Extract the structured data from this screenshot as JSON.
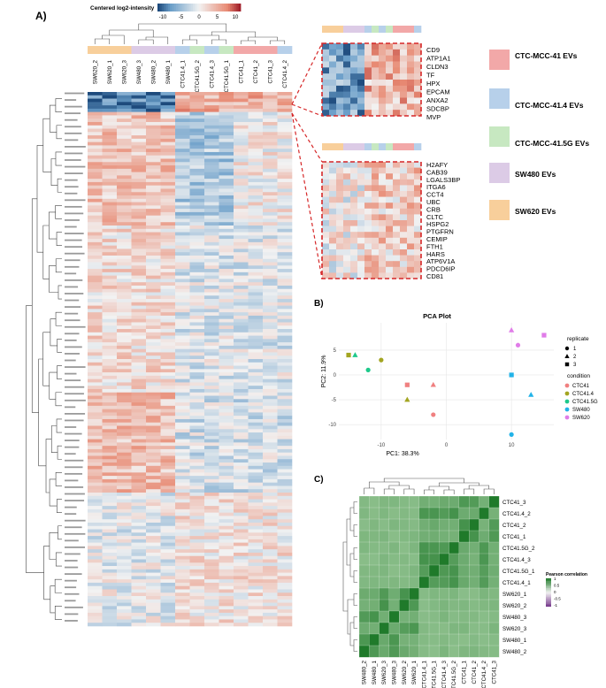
{
  "panel_labels": {
    "a": "A)",
    "b": "B)",
    "c": "C)"
  },
  "colors": {
    "CTC41": "#f2a8a8",
    "CTC41.4": "#b7d0ea",
    "CTC41.5G": "#c7e8c1",
    "SW480": "#dccbe6",
    "SW620": "#f8cf9b"
  },
  "chart_data": [
    {
      "type": "heatmap",
      "title": "Centered log2-intensity",
      "legend_ticks": [
        "-10",
        "-5",
        "0",
        "5",
        "10"
      ],
      "columns": [
        "SW620_2",
        "SW620_1",
        "SW620_3",
        "SW480_3",
        "SW480_2",
        "SW480_1",
        "CTC41.4_1",
        "CTC41.5G_2",
        "CTC41.4_3",
        "CTC41.5G_1",
        "CTC41_1",
        "CTC41_2",
        "CTC41_3",
        "CTC41.4_2"
      ],
      "column_groups": [
        "SW620",
        "SW620",
        "SW620",
        "SW480",
        "SW480",
        "SW480",
        "CTC41.4",
        "CTC41.5G",
        "CTC41.4",
        "CTC41.5G",
        "CTC41",
        "CTC41",
        "CTC41",
        "CTC41.4"
      ],
      "legend": [
        {
          "key": "CTC41",
          "label": "CTC-MCC-41 EVs"
        },
        {
          "key": "CTC41.4",
          "label": "CTC-MCC-41.4 EVs"
        },
        {
          "key": "CTC41.5G",
          "label": "CTC-MCC-41.5G EVs"
        },
        {
          "key": "SW480",
          "label": "SW480 EVs"
        },
        {
          "key": "SW620",
          "label": "SW620 EVs"
        }
      ],
      "zoom_top_genes": [
        "CD9",
        "ATP1A1",
        "CLDN3",
        "TF",
        "HPX",
        "EPCAM",
        "ANXA2",
        "SDCBP",
        "MVP"
      ],
      "zoom_bottom_genes": [
        "H2AFY",
        "CAB39",
        "LGALS3BP",
        "ITGA6",
        "CCT4",
        "UBC",
        "CRB",
        "CLTC",
        "HSPG2",
        "PTGFRN",
        "CEMIP",
        "FTH1",
        "HARS",
        "ATP6V1A",
        "PDCD6IP",
        "CD81"
      ]
    },
    {
      "type": "scatter",
      "title": "PCA Plot",
      "xlabel": "PC1: 38.3%",
      "ylabel": "PC2: 11.9%",
      "xlim": [
        -16.5,
        16.5
      ],
      "ylim": [
        -13,
        10.5
      ],
      "xticks": [
        -10,
        0,
        10
      ],
      "yticks": [
        -10,
        -5,
        0,
        5
      ],
      "shape_legend_title": "replicate",
      "shape_legend": [
        {
          "label": "1",
          "shape": "circle"
        },
        {
          "label": "2",
          "shape": "triangle"
        },
        {
          "label": "3",
          "shape": "square"
        }
      ],
      "color_legend_title": "condition",
      "color_legend": [
        {
          "label": "CTC41",
          "color": "#f08080"
        },
        {
          "label": "CTC41.4",
          "color": "#a3a521"
        },
        {
          "label": "CTC41.5G",
          "color": "#1ec98b"
        },
        {
          "label": "SW480",
          "color": "#22b3e8"
        },
        {
          "label": "SW620",
          "color": "#e07ce8"
        }
      ],
      "points": [
        {
          "condition": "CTC41",
          "replicate": 1,
          "x": -2,
          "y": -8
        },
        {
          "condition": "CTC41",
          "replicate": 2,
          "x": -2,
          "y": -2
        },
        {
          "condition": "CTC41",
          "replicate": 3,
          "x": -6,
          "y": -2
        },
        {
          "condition": "CTC41.4",
          "replicate": 1,
          "x": -10,
          "y": 3
        },
        {
          "condition": "CTC41.4",
          "replicate": 2,
          "x": -6,
          "y": -5
        },
        {
          "condition": "CTC41.4",
          "replicate": 3,
          "x": -15,
          "y": 4
        },
        {
          "condition": "CTC41.5G",
          "replicate": 1,
          "x": -12,
          "y": 1
        },
        {
          "condition": "CTC41.5G",
          "replicate": 2,
          "x": -14,
          "y": 4
        },
        {
          "condition": "SW480",
          "replicate": 1,
          "x": 10,
          "y": -12
        },
        {
          "condition": "SW480",
          "replicate": 2,
          "x": 13,
          "y": -4
        },
        {
          "condition": "SW480",
          "replicate": 3,
          "x": 10,
          "y": 0
        },
        {
          "condition": "SW620",
          "replicate": 1,
          "x": 11,
          "y": 6
        },
        {
          "condition": "SW620",
          "replicate": 2,
          "x": 10,
          "y": 9
        },
        {
          "condition": "SW620",
          "replicate": 3,
          "x": 15,
          "y": 8
        }
      ]
    },
    {
      "type": "heatmap",
      "title": "Pearson correlation",
      "legend_ticks": [
        "1",
        "0.5",
        "0",
        "-0.5",
        "-1"
      ],
      "rows": [
        "CTC41_3",
        "CTC41.4_2",
        "CTC41_2",
        "CTC41_1",
        "CTC41.5G_2",
        "CTC41.4_3",
        "CTC41.5G_1",
        "CTC41.4_1",
        "SW620_1",
        "SW620_2",
        "SW480_3",
        "SW620_3",
        "SW480_1",
        "SW480_2"
      ],
      "columns": [
        "SW480_2",
        "SW480_1",
        "SW620_3",
        "SW480_3",
        "SW620_2",
        "SW620_1",
        "CTC41.4_1",
        "CTC41.5G_1",
        "CTC41.4_3",
        "CTC41.5G_2",
        "CTC41_1",
        "CTC41_2",
        "CTC41.4_2",
        "CTC41_3"
      ]
    }
  ]
}
